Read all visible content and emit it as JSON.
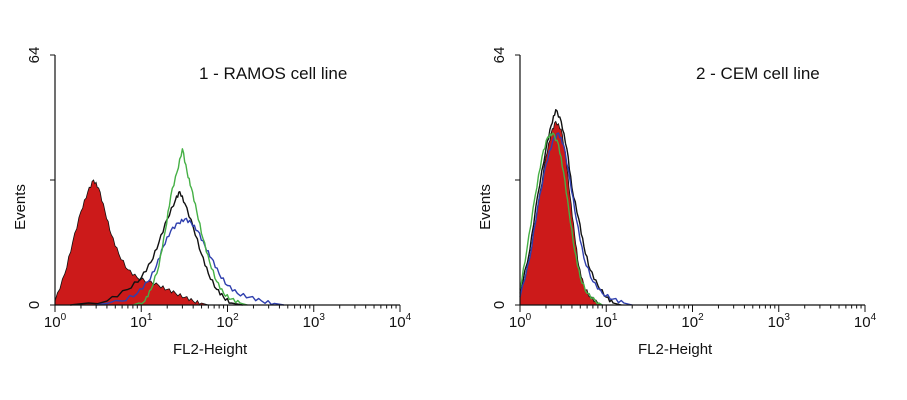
{
  "chart_data": [
    {
      "type": "histogram",
      "title": "1 - RAMOS cell line",
      "xlabel": "FL2-Height",
      "ylabel": "Events",
      "xscale": "log",
      "xlim": [
        1,
        10000
      ],
      "ylim": [
        0,
        64
      ],
      "x_tick_labels": [
        {
          "base": "10",
          "exp": "0",
          "value": 1
        },
        {
          "base": "10",
          "exp": "1",
          "value": 10
        },
        {
          "base": "10",
          "exp": "2",
          "value": 100
        },
        {
          "base": "10",
          "exp": "3",
          "value": 1000
        },
        {
          "base": "10",
          "exp": "4",
          "value": 10000
        }
      ],
      "y_tick_labels": [
        {
          "label": "0",
          "value": 0
        },
        {
          "label": "64",
          "value": 64
        }
      ],
      "series": [
        {
          "style": "filled",
          "color": "#cc1a1a",
          "points": [
            [
              1,
              1
            ],
            [
              1.3,
              8
            ],
            [
              1.6,
              16
            ],
            [
              2,
              24
            ],
            [
              2.4,
              29
            ],
            [
              2.8,
              32
            ],
            [
              3.2,
              30
            ],
            [
              3.8,
              24
            ],
            [
              4.5,
              18
            ],
            [
              5.5,
              13
            ],
            [
              7,
              9
            ],
            [
              9,
              7
            ],
            [
              12,
              6
            ],
            [
              16,
              5
            ],
            [
              20,
              4
            ],
            [
              25,
              3
            ],
            [
              32,
              2
            ],
            [
              40,
              1
            ],
            [
              50,
              0.5
            ],
            [
              60,
              0
            ]
          ]
        },
        {
          "style": "line",
          "color": "#111111",
          "points": [
            [
              1.5,
              0
            ],
            [
              4,
              1
            ],
            [
              7,
              4
            ],
            [
              10,
              7
            ],
            [
              13,
              11
            ],
            [
              16,
              16
            ],
            [
              20,
              22
            ],
            [
              25,
              27
            ],
            [
              28,
              29
            ],
            [
              32,
              26
            ],
            [
              40,
              20
            ],
            [
              50,
              13
            ],
            [
              60,
              8
            ],
            [
              75,
              4
            ],
            [
              90,
              2
            ],
            [
              110,
              0.5
            ],
            [
              150,
              0
            ]
          ]
        },
        {
          "style": "line",
          "color": "#2f3fae",
          "points": [
            [
              3,
              0
            ],
            [
              6,
              1
            ],
            [
              9,
              3
            ],
            [
              12,
              6
            ],
            [
              15,
              10
            ],
            [
              18,
              15
            ],
            [
              22,
              19
            ],
            [
              27,
              21
            ],
            [
              32,
              22
            ],
            [
              38,
              21
            ],
            [
              45,
              19
            ],
            [
              55,
              15
            ],
            [
              65,
              12
            ],
            [
              80,
              8
            ],
            [
              100,
              5
            ],
            [
              130,
              3
            ],
            [
              180,
              2
            ],
            [
              250,
              1
            ],
            [
              350,
              0.4
            ],
            [
              450,
              0
            ]
          ]
        },
        {
          "style": "line",
          "color": "#45b045",
          "points": [
            [
              8,
              0
            ],
            [
              11,
              1
            ],
            [
              13,
              4
            ],
            [
              16,
              10
            ],
            [
              19,
              19
            ],
            [
              22,
              28
            ],
            [
              26,
              34
            ],
            [
              30,
              40
            ],
            [
              34,
              34
            ],
            [
              38,
              30
            ],
            [
              44,
              24
            ],
            [
              52,
              17
            ],
            [
              62,
              11
            ],
            [
              75,
              6
            ],
            [
              90,
              3
            ],
            [
              110,
              1.5
            ],
            [
              140,
              0.5
            ],
            [
              170,
              0
            ]
          ]
        }
      ]
    },
    {
      "type": "histogram",
      "title": "2 - CEM cell line",
      "xlabel": "FL2-Height",
      "ylabel": "Events",
      "xscale": "log",
      "xlim": [
        1,
        10000
      ],
      "ylim": [
        0,
        64
      ],
      "x_tick_labels": [
        {
          "base": "10",
          "exp": "0",
          "value": 1
        },
        {
          "base": "10",
          "exp": "1",
          "value": 10
        },
        {
          "base": "10",
          "exp": "2",
          "value": 100
        },
        {
          "base": "10",
          "exp": "3",
          "value": 1000
        },
        {
          "base": "10",
          "exp": "4",
          "value": 10000
        }
      ],
      "y_tick_labels": [
        {
          "label": "0",
          "value": 0
        },
        {
          "label": "64",
          "value": 64
        }
      ],
      "series": [
        {
          "style": "filled",
          "color": "#cc1a1a",
          "points": [
            [
              1,
              2
            ],
            [
              1.3,
              12
            ],
            [
              1.6,
              25
            ],
            [
              2,
              38
            ],
            [
              2.3,
              44
            ],
            [
              2.6,
              47
            ],
            [
              3,
              45
            ],
            [
              3.4,
              38
            ],
            [
              3.8,
              28
            ],
            [
              4.3,
              18
            ],
            [
              4.8,
              10
            ],
            [
              5.5,
              5
            ],
            [
              6.5,
              2
            ],
            [
              8,
              0.5
            ],
            [
              9,
              0
            ]
          ]
        },
        {
          "style": "line",
          "color": "#111111",
          "points": [
            [
              1,
              3
            ],
            [
              1.3,
              14
            ],
            [
              1.6,
              28
            ],
            [
              2,
              40
            ],
            [
              2.3,
              46
            ],
            [
              2.6,
              50
            ],
            [
              3,
              47
            ],
            [
              3.5,
              40
            ],
            [
              4,
              30
            ],
            [
              4.8,
              22
            ],
            [
              5.5,
              15
            ],
            [
              6.5,
              9
            ],
            [
              8,
              5
            ],
            [
              10,
              2
            ],
            [
              12,
              0.5
            ],
            [
              15,
              0
            ]
          ]
        },
        {
          "style": "line",
          "color": "#2f3fae",
          "points": [
            [
              1,
              2
            ],
            [
              1.3,
              12
            ],
            [
              1.6,
              25
            ],
            [
              2,
              36
            ],
            [
              2.4,
              42
            ],
            [
              2.8,
              44
            ],
            [
              3.2,
              41
            ],
            [
              3.8,
              32
            ],
            [
              4.5,
              22
            ],
            [
              5.5,
              12
            ],
            [
              7,
              6
            ],
            [
              9,
              3
            ],
            [
              12,
              1.5
            ],
            [
              16,
              0.5
            ],
            [
              20,
              0
            ]
          ]
        },
        {
          "style": "line",
          "color": "#45b045",
          "points": [
            [
              1,
              4
            ],
            [
              1.2,
              14
            ],
            [
              1.5,
              28
            ],
            [
              1.8,
              38
            ],
            [
              2.1,
              43
            ],
            [
              2.4,
              44
            ],
            [
              2.8,
              41
            ],
            [
              3.2,
              34
            ],
            [
              3.7,
              24
            ],
            [
              4.3,
              14
            ],
            [
              5,
              7
            ],
            [
              6,
              3
            ],
            [
              7.5,
              1
            ],
            [
              9,
              0
            ]
          ]
        }
      ]
    }
  ]
}
